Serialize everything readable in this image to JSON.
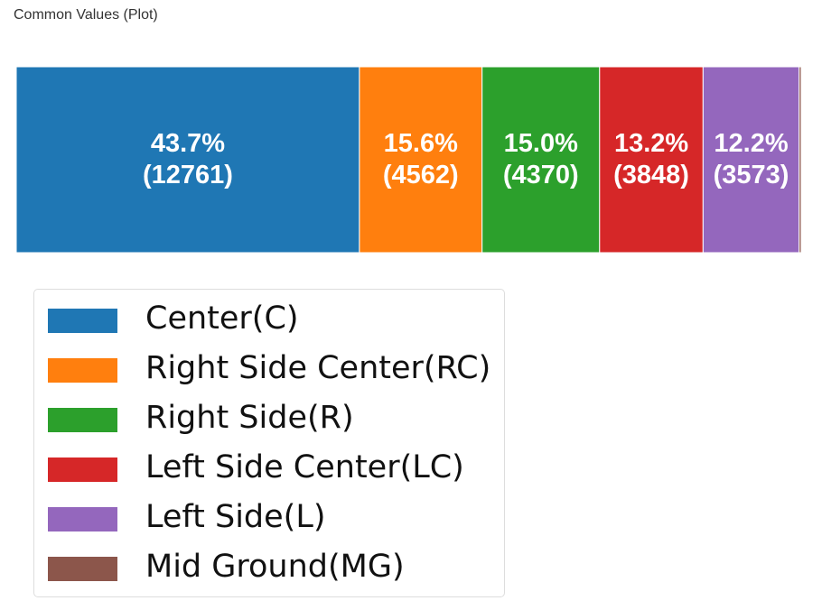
{
  "heading": "Common Values (Plot)",
  "chart_data": {
    "type": "bar",
    "orientation": "horizontal-stacked-100",
    "title": "",
    "categories": [
      "Center(C)",
      "Right Side Center(RC)",
      "Right Side(R)",
      "Left Side Center(LC)",
      "Left Side(L)",
      "Mid Ground(MG)"
    ],
    "values": [
      12761,
      4562,
      4370,
      3848,
      3573,
      77
    ],
    "percent_labels": [
      "43.7%",
      "15.6%",
      "15.0%",
      "13.2%",
      "12.2%",
      ""
    ],
    "count_labels": [
      "(12761)",
      "(4562)",
      "(4370)",
      "(3848)",
      "(3573)",
      ""
    ],
    "colors": [
      "#1f77b4",
      "#ff7f0e",
      "#2ca02c",
      "#d62728",
      "#9467bd",
      "#8c564b"
    ],
    "legend_placement": "bottom-left",
    "grid": false
  }
}
